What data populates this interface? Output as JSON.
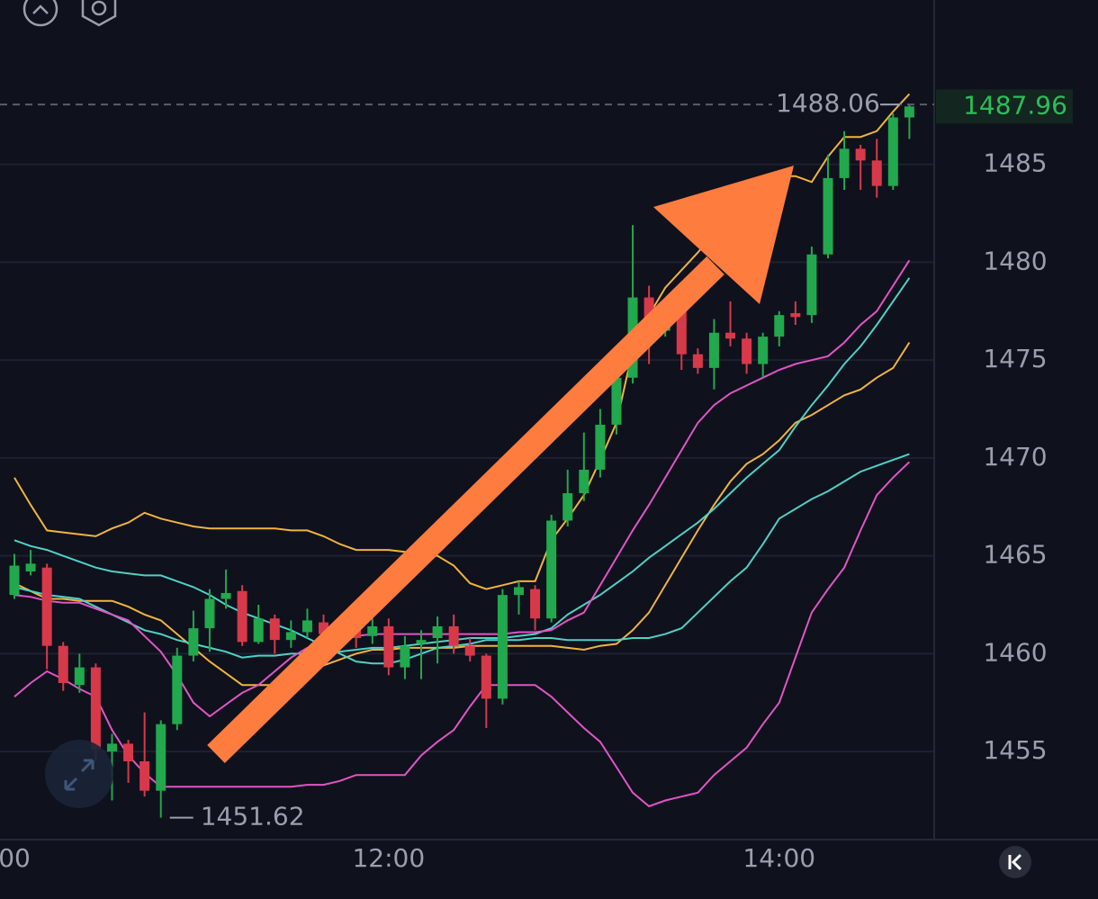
{
  "chart_data": {
    "type": "candlestick",
    "categories": [
      "00",
      null,
      null,
      null,
      null,
      null,
      null,
      null,
      null,
      null,
      null,
      null,
      null,
      null,
      null,
      null,
      null,
      null,
      null,
      null,
      null,
      null,
      null,
      "12:00",
      null,
      null,
      null,
      null,
      null,
      null,
      null,
      null,
      null,
      null,
      null,
      null,
      null,
      null,
      null,
      null,
      null,
      null,
      null,
      null,
      null,
      null,
      null,
      "14:00",
      null,
      null,
      null,
      null,
      null,
      null,
      null,
      null
    ],
    "open": [
      1463.0,
      1464.2,
      1464.4,
      1460.4,
      1458.4,
      1459.3,
      1455.0,
      1455.4,
      1454.5,
      1453.0,
      1456.4,
      1459.9,
      1461.3,
      1462.8,
      1463.2,
      1460.6,
      1461.8,
      1460.7,
      1461.1,
      1461.6,
      1461.0,
      1461.2,
      1460.9,
      1461.4,
      1459.3,
      1460.5,
      1460.8,
      1461.4,
      1460.4,
      1459.9,
      1457.7,
      1463.0,
      1463.3,
      1461.8,
      1466.8,
      1468.2,
      1469.4,
      1471.7,
      1474.1,
      1478.2,
      1476.5,
      1477.8,
      1475.3,
      1474.6,
      1476.4,
      1476.1,
      1474.8,
      1476.2,
      1477.4,
      1477.3,
      1480.4,
      1484.3,
      1485.8,
      1485.2,
      1483.9,
      1487.4
    ],
    "high": [
      1465.1,
      1465.3,
      1464.6,
      1460.6,
      1460.0,
      1459.5,
      1455.9,
      1455.6,
      1457.0,
      1456.6,
      1460.3,
      1462.2,
      1463.3,
      1464.3,
      1463.5,
      1462.5,
      1462.0,
      1461.7,
      1462.3,
      1462.0,
      1461.8,
      1461.6,
      1461.8,
      1461.8,
      1460.9,
      1461.2,
      1461.9,
      1462.0,
      1460.8,
      1460.0,
      1463.3,
      1463.7,
      1463.5,
      1467.1,
      1469.4,
      1471.3,
      1472.5,
      1474.6,
      1481.9,
      1478.8,
      1478.0,
      1478.2,
      1475.6,
      1477.1,
      1478.0,
      1476.4,
      1476.4,
      1477.5,
      1478.0,
      1480.8,
      1485.5,
      1486.7,
      1486.0,
      1486.3,
      1487.6,
      1488.06
    ],
    "low": [
      1462.8,
      1464.0,
      1459.2,
      1458.1,
      1458.0,
      1454.5,
      1452.5,
      1453.4,
      1452.7,
      1451.62,
      1456.1,
      1459.6,
      1460.1,
      1462.3,
      1460.4,
      1460.5,
      1460.0,
      1460.3,
      1460.8,
      1460.6,
      1460.4,
      1460.3,
      1460.5,
      1458.9,
      1458.7,
      1458.7,
      1459.5,
      1460.0,
      1459.6,
      1456.2,
      1457.4,
      1462.0,
      1461.2,
      1461.6,
      1466.5,
      1467.8,
      1469.0,
      1471.2,
      1473.8,
      1474.8,
      1476.2,
      1474.5,
      1474.3,
      1473.5,
      1475.7,
      1474.3,
      1474.1,
      1475.7,
      1476.8,
      1476.9,
      1480.2,
      1483.7,
      1483.7,
      1483.3,
      1483.7,
      1486.3
    ],
    "close": [
      1464.5,
      1464.6,
      1460.4,
      1458.5,
      1459.3,
      1455.1,
      1455.4,
      1454.5,
      1453.0,
      1456.4,
      1459.9,
      1461.3,
      1462.8,
      1463.1,
      1460.6,
      1461.8,
      1460.7,
      1461.1,
      1461.7,
      1461.0,
      1461.2,
      1460.8,
      1461.4,
      1459.3,
      1460.4,
      1460.7,
      1461.4,
      1460.4,
      1459.9,
      1457.7,
      1463.0,
      1463.4,
      1461.8,
      1466.8,
      1468.2,
      1469.4,
      1471.7,
      1474.1,
      1478.2,
      1476.9,
      1477.2,
      1475.3,
      1474.6,
      1476.4,
      1476.1,
      1474.8,
      1476.2,
      1477.3,
      1477.2,
      1480.4,
      1484.3,
      1485.8,
      1485.2,
      1483.9,
      1487.4,
      1487.96
    ],
    "up_color": "#22a84d",
    "down_color": "#d8394a",
    "lines": [
      {
        "color": "#f0b43c",
        "values": [
          1469.0,
          1467.6,
          1466.3,
          1466.2,
          1466.1,
          1466.0,
          1466.4,
          1466.7,
          1467.2,
          1466.9,
          1466.7,
          1466.5,
          1466.4,
          1466.4,
          1466.4,
          1466.4,
          1466.4,
          1466.3,
          1466.3,
          1466.0,
          1465.6,
          1465.3,
          1465.3,
          1465.3,
          1465.2,
          1465.1,
          1465.0,
          1464.5,
          1463.6,
          1463.3,
          1463.5,
          1463.7,
          1463.7,
          1465.8,
          1466.9,
          1468.1,
          1469.9,
          1471.8,
          1475.5,
          1477.3,
          1478.7,
          1479.6,
          1480.5,
          1481.5,
          1482.4,
          1483.3,
          1484.0,
          1484.4,
          1484.4,
          1484.1,
          1485.4,
          1486.4,
          1486.4,
          1486.7,
          1487.7,
          1488.6
        ]
      },
      {
        "color": "#f0b43c",
        "values": [
          1463.6,
          1463.2,
          1462.8,
          1462.8,
          1462.7,
          1462.7,
          1462.7,
          1462.4,
          1462.0,
          1461.7,
          1461.0,
          1460.3,
          1459.6,
          1459.0,
          1458.4,
          1458.4,
          1458.4,
          1458.7,
          1459.0,
          1459.4,
          1459.7,
          1460.0,
          1460.2,
          1460.2,
          1460.3,
          1460.3,
          1460.3,
          1460.3,
          1460.4,
          1460.4,
          1460.4,
          1460.4,
          1460.4,
          1460.4,
          1460.3,
          1460.2,
          1460.4,
          1460.5,
          1461.2,
          1462.1,
          1463.5,
          1464.9,
          1466.3,
          1467.6,
          1468.8,
          1469.7,
          1470.2,
          1470.9,
          1471.8,
          1472.2,
          1472.7,
          1473.2,
          1473.5,
          1474.1,
          1474.6,
          1475.9
        ]
      },
      {
        "color": "#4fd1c5",
        "values": [
          1465.8,
          1465.5,
          1465.3,
          1465.0,
          1464.7,
          1464.4,
          1464.2,
          1464.1,
          1464.0,
          1464.0,
          1463.7,
          1463.4,
          1463.0,
          1462.5,
          1462.1,
          1461.8,
          1461.5,
          1461.2,
          1460.8,
          1460.4,
          1460.0,
          1459.6,
          1459.5,
          1459.5,
          1459.7,
          1460.0,
          1460.3,
          1460.4,
          1460.5,
          1460.7,
          1460.7,
          1460.7,
          1460.8,
          1460.8,
          1460.7,
          1460.7,
          1460.7,
          1460.7,
          1460.8,
          1460.8,
          1461.0,
          1461.3,
          1462.1,
          1462.9,
          1463.7,
          1464.4,
          1465.6,
          1466.9,
          1467.4,
          1467.9,
          1468.3,
          1468.8,
          1469.3,
          1469.6,
          1469.9,
          1470.2
        ]
      },
      {
        "color": "#4fd1c5",
        "values": [
          1463.4,
          1463.2,
          1463.0,
          1462.9,
          1462.8,
          1462.4,
          1462.0,
          1461.6,
          1461.2,
          1461.0,
          1460.7,
          1460.5,
          1460.3,
          1460.1,
          1459.8,
          1459.9,
          1459.9,
          1460.0,
          1460.0,
          1460.1,
          1460.1,
          1460.2,
          1460.3,
          1460.3,
          1460.4,
          1460.5,
          1460.6,
          1460.7,
          1460.8,
          1460.8,
          1460.8,
          1460.9,
          1461.0,
          1461.3,
          1462.0,
          1462.5,
          1463.0,
          1463.6,
          1464.2,
          1464.9,
          1465.5,
          1466.1,
          1466.7,
          1467.4,
          1468.2,
          1469.0,
          1469.7,
          1470.4,
          1471.6,
          1472.7,
          1473.7,
          1474.8,
          1475.7,
          1476.8,
          1478.0,
          1479.2
        ]
      },
      {
        "color": "#e254c4",
        "values": [
          1463.0,
          1462.9,
          1462.7,
          1462.6,
          1462.6,
          1462.3,
          1462.0,
          1461.7,
          1460.9,
          1460.1,
          1458.9,
          1457.5,
          1456.8,
          1457.4,
          1458.0,
          1458.4,
          1459.1,
          1459.8,
          1460.3,
          1460.5,
          1460.7,
          1460.9,
          1461.0,
          1461.0,
          1461.0,
          1461.0,
          1461.0,
          1461.0,
          1461.0,
          1461.0,
          1461.0,
          1461.1,
          1461.1,
          1461.2,
          1461.7,
          1462.1,
          1463.5,
          1464.9,
          1466.3,
          1467.6,
          1469.0,
          1470.4,
          1471.8,
          1472.7,
          1473.3,
          1473.7,
          1474.1,
          1474.5,
          1474.8,
          1475.0,
          1475.2,
          1475.9,
          1476.8,
          1477.5,
          1478.8,
          1480.1
        ]
      },
      {
        "color": "#e254c4",
        "values": [
          1457.8,
          1458.5,
          1459.1,
          1458.7,
          1458.2,
          1457.8,
          1456.1,
          1454.8,
          1453.9,
          1453.2,
          1453.2,
          1453.2,
          1453.2,
          1453.2,
          1453.2,
          1453.2,
          1453.2,
          1453.2,
          1453.3,
          1453.3,
          1453.5,
          1453.8,
          1453.8,
          1453.8,
          1453.8,
          1454.8,
          1455.5,
          1456.1,
          1457.3,
          1458.4,
          1458.4,
          1458.4,
          1458.4,
          1457.8,
          1457.0,
          1456.2,
          1455.5,
          1454.2,
          1452.9,
          1452.2,
          1452.5,
          1452.7,
          1452.9,
          1453.8,
          1454.5,
          1455.2,
          1456.4,
          1457.5,
          1459.8,
          1462.1,
          1463.3,
          1464.4,
          1466.3,
          1468.1,
          1469.0,
          1469.8
        ]
      }
    ],
    "ylim": [
      1450.5,
      1493.4
    ],
    "yticks": [
      1455,
      1460,
      1465,
      1470,
      1475,
      1480,
      1485
    ],
    "grid": true
  }
}
